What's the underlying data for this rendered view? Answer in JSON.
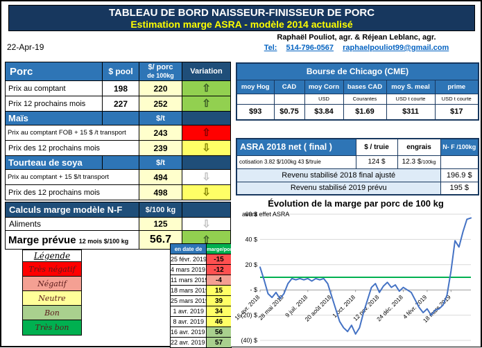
{
  "banner": {
    "title": "TABLEAU DE BORD NAISSEUR-FINISSEUR DE PORC",
    "subtitle": "Estimation marge ASRA - modèle 2014 actualisé"
  },
  "report_date": "22-Apr-19",
  "contact": {
    "authors": "Raphaël Pouliot, agr.   &   Réjean Leblanc, agr.",
    "tel_label": "Tel:",
    "phone": "514-796-0567",
    "email": "raphaelpouliot99@gmail.com"
  },
  "colors": {
    "banner_bg": "#17375E",
    "header_blue": "#2E75B6",
    "header_dark_blue": "#1F4E79",
    "value_bg": "#FFFFCC",
    "link_blue": "#0563C1"
  },
  "porc_table": {
    "header": {
      "col1": "Porc",
      "col2": "$ pool",
      "col3a": "$/ porc",
      "col3b": "de 100kg",
      "col4": "Variation"
    },
    "rows": [
      {
        "label": "Prix au comptant",
        "pool": "198",
        "price": "220",
        "arrow": "⇧",
        "arrow_bg": "#92D050",
        "arrow_fg": "#375623"
      },
      {
        "label": "Prix 12 prochains mois",
        "pool": "227",
        "price": "252",
        "arrow": "⇧",
        "arrow_bg": "#92D050",
        "arrow_fg": "#375623"
      }
    ],
    "mais": {
      "title": "Maïs",
      "unit": "$/t",
      "rows": [
        {
          "label": "Prix au comptant FOB + 15 $ /t transport",
          "price": "243",
          "arrow": "⇧",
          "arrow_bg": "#FF0000",
          "arrow_fg": "#7F0000"
        },
        {
          "label": "Prix des 12 prochains mois",
          "price": "239",
          "arrow": "⇩",
          "arrow_bg": "#FFFF66",
          "arrow_fg": "#808000"
        }
      ]
    },
    "soya": {
      "title": "Tourteau de soya",
      "unit": "$/t",
      "rows": [
        {
          "label": "Prix au comptant + 15 $/t  transport",
          "price": "494",
          "arrow": "⇩",
          "arrow_bg": "#FFFFFF",
          "arrow_fg": "#BFBFBF"
        },
        {
          "label": "Prix des 12 prochains mois",
          "price": "498",
          "arrow": "⇩",
          "arrow_bg": "#FFFF66",
          "arrow_fg": "#808000"
        }
      ]
    }
  },
  "calc_table": {
    "title": "Calculs marge  modèle N-F",
    "unit": "$/100 kg",
    "aliments": {
      "label": "Aliments",
      "value": "125",
      "arrow": "⇩",
      "arrow_bg": "#FFFFFF",
      "arrow_fg": "#BFBFBF"
    },
    "marge": {
      "label": "Marge prévue",
      "sublabel": "12 mois  $/100 kg",
      "value": "56.7",
      "arrow": "⇧",
      "arrow_bg": "#92D050",
      "arrow_fg": "#375623"
    }
  },
  "legend": {
    "title": "Légende",
    "items": [
      {
        "label": "Très négatif",
        "color": "#FF0000"
      },
      {
        "label": "Négatif",
        "color": "#F4A093"
      },
      {
        "label": "Neutre",
        "color": "#FFFF99"
      },
      {
        "label": "Bon",
        "color": "#A9D08E"
      },
      {
        "label": "Très bon",
        "color": "#00B050"
      }
    ]
  },
  "marge_table": {
    "header": {
      "date": "en date de",
      "value": "marge/porc"
    },
    "rows": [
      {
        "date": "25 févr. 2019",
        "value": "-15",
        "color": "#FF5050"
      },
      {
        "date": "4 mars 2019",
        "value": "-12",
        "color": "#FF5050"
      },
      {
        "date": "11 mars 2019",
        "value": "-4",
        "color": "#F4A093"
      },
      {
        "date": "18 mars 2019",
        "value": "15",
        "color": "#FFFF66"
      },
      {
        "date": "25 mars 2019",
        "value": "39",
        "color": "#FFFF66"
      },
      {
        "date": "1 avr. 2019",
        "value": "34",
        "color": "#FFFF66"
      },
      {
        "date": "8 avr. 2019",
        "value": "46",
        "color": "#FFFF66"
      },
      {
        "date": "16 avr. 2019",
        "value": "56",
        "color": "#A9D08E"
      },
      {
        "date": "22 avr. 2019",
        "value": "57",
        "color": "#A9D08E"
      }
    ]
  },
  "cme_table": {
    "title": "Bourse de Chicago (CME)",
    "columns": [
      {
        "header": "moy Hog",
        "sub": "",
        "value": "$93"
      },
      {
        "header": "CAD",
        "sub": "",
        "value": "$0.75"
      },
      {
        "header": "moy Corn",
        "sub": "USD",
        "value": "$3.84"
      },
      {
        "header": "bases CAD",
        "sub": "Courantes",
        "value": "$1.69"
      },
      {
        "header": "moy S. meal",
        "sub": "USD t courte",
        "value": "$311"
      },
      {
        "header": "prime",
        "sub": "USD t courte",
        "value": "$17"
      }
    ]
  },
  "asra_table": {
    "title": "ASRA 2018 net ( final )",
    "col2": "$ / truie",
    "col3": "engrais",
    "col4": "N- F /100kg",
    "cotisation": "cotisation 3.82 $/100kg  43 $/truie",
    "truie_value": "124  $",
    "engrais_value": "12.3 $",
    "engrais_unit": "/100kg",
    "row2018": {
      "label": "Revenu stabilisé 2018  final ajusté",
      "value": "196.9 $"
    },
    "row2019": {
      "label": "Revenu stabilisé 2019 prévu",
      "value": "195 $"
    }
  },
  "chart_data": {
    "type": "line",
    "title": "Évolution de la marge par porc de 100 kg",
    "annotation": "avant effet ASRA",
    "ylim": [
      -40,
      60
    ],
    "yticks": [
      60,
      40,
      20,
      0,
      -20,
      -40
    ],
    "ytick_labels": [
      "60 $",
      "40 $",
      "20 $",
      "-  $",
      "(20) $",
      "(40) $"
    ],
    "xtick_labels": [
      "16 avr. 2018",
      "28 mai 2018",
      "9 juil. 2018",
      "20 août 2018",
      "1 oct. 2018",
      "12 nov. 2018",
      "24 déc. 2018",
      "4 févr. 2019",
      "18 mars 2019"
    ],
    "xtick_positions": [
      0,
      6,
      12,
      18,
      24,
      30,
      36,
      42,
      48
    ],
    "grid": true,
    "legend_position": "none",
    "series": [
      {
        "name": "marge par porc",
        "color": "#4472C4",
        "values": [
          18,
          8,
          -3,
          -6,
          -2,
          -7,
          -3,
          5,
          9,
          8,
          9,
          8,
          9,
          7,
          9,
          8,
          9,
          5,
          -5,
          -15,
          -25,
          -30,
          -33,
          -28,
          -35,
          -30,
          -18,
          -8,
          2,
          5,
          -2,
          3,
          6,
          2,
          4,
          -1,
          2,
          0,
          -2,
          -8,
          -14,
          -18,
          -15,
          -20,
          -16,
          -15,
          -12,
          -4,
          15,
          39,
          34,
          46,
          56,
          57
        ]
      },
      {
        "name": "référence",
        "color": "#00B050",
        "constant": 10
      }
    ]
  }
}
